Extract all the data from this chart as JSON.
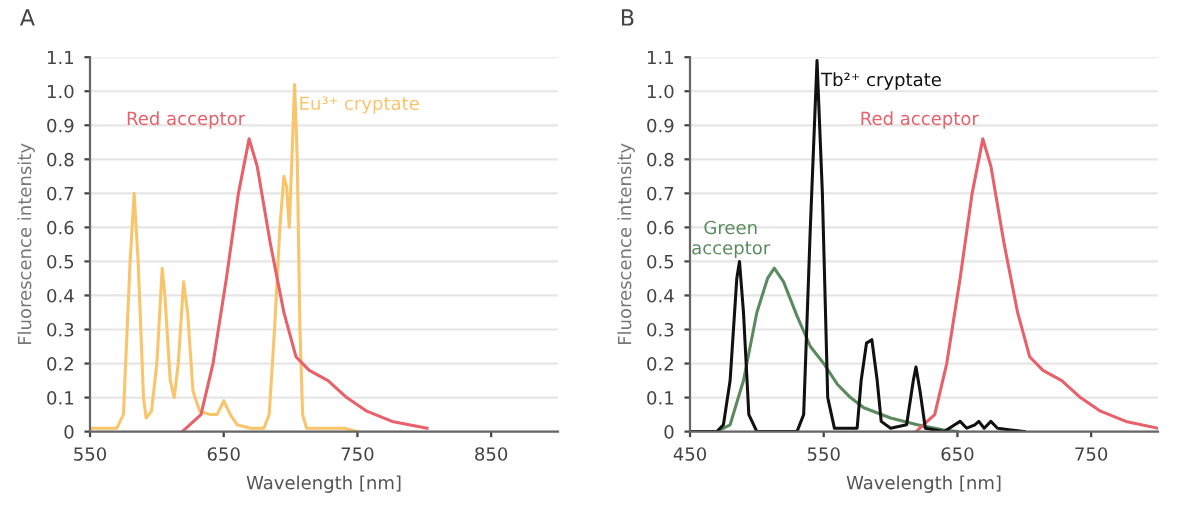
{
  "chart_data": [
    {
      "type": "line",
      "title": "A",
      "xlabel": "Wavelength [nm]",
      "ylabel": "Fluorescence intensity",
      "xlim": [
        550,
        900
      ],
      "xticks": [
        550,
        650,
        750,
        850
      ],
      "ylim": [
        0,
        1.1
      ],
      "yticks": [
        0,
        0.1,
        0.2,
        0.3,
        0.4,
        0.5,
        0.6,
        0.7,
        0.8,
        0.9,
        {
          "value": 1.0,
          "label": "1.0"
        },
        1.1
      ],
      "grid": "y",
      "legend": false,
      "marker": "none",
      "line_style": "solid",
      "series": [
        {
          "name": "Eu³⁺ cryptate",
          "color": "#f9c46a",
          "x": [
            550,
            570,
            575,
            580,
            583,
            586,
            590,
            592,
            596,
            600,
            604,
            606,
            610,
            613,
            616,
            620,
            623,
            627,
            632,
            640,
            645,
            650,
            655,
            660,
            670,
            680,
            684,
            688,
            692,
            695,
            697,
            699,
            701,
            703,
            705,
            707,
            709,
            712,
            730,
            740,
            750
          ],
          "values": [
            0.01,
            0.01,
            0.05,
            0.5,
            0.7,
            0.5,
            0.1,
            0.04,
            0.06,
            0.2,
            0.48,
            0.4,
            0.15,
            0.1,
            0.2,
            0.44,
            0.35,
            0.12,
            0.06,
            0.05,
            0.05,
            0.09,
            0.05,
            0.02,
            0.01,
            0.01,
            0.05,
            0.3,
            0.6,
            0.75,
            0.72,
            0.6,
            0.8,
            1.02,
            0.8,
            0.3,
            0.05,
            0.01,
            0.01,
            0.01,
            0.0
          ]
        },
        {
          "name": "Red acceptor",
          "color": "#e8606a",
          "x": [
            619,
            633,
            642,
            652,
            661,
            669,
            675,
            685,
            695,
            704,
            714,
            728,
            742,
            757,
            776,
            802
          ],
          "values": [
            0,
            0.05,
            0.2,
            0.45,
            0.7,
            0.86,
            0.78,
            0.55,
            0.35,
            0.22,
            0.18,
            0.15,
            0.1,
            0.06,
            0.03,
            0.01
          ]
        }
      ]
    },
    {
      "type": "line",
      "title": "B",
      "xlabel": "Wavelength [nm]",
      "ylabel": "Fluorescence intensity",
      "xlim": [
        450,
        800
      ],
      "xticks": [
        450,
        550,
        650,
        750
      ],
      "ylim": [
        0,
        1.1
      ],
      "yticks": [
        0,
        0.1,
        0.2,
        0.3,
        0.4,
        0.5,
        0.6,
        0.7,
        0.8,
        0.9,
        {
          "value": 1.0,
          "label": "1.0"
        },
        1.1
      ],
      "grid": "y",
      "legend": false,
      "marker": "none",
      "line_style": "solid",
      "series": [
        {
          "name": "Green\nacceptor",
          "color": "#5a8a5e",
          "x": [
            470,
            480,
            490,
            500,
            508,
            513,
            520,
            530,
            540,
            550,
            560,
            570,
            580,
            600,
            620,
            640,
            650
          ],
          "values": [
            0,
            0.02,
            0.15,
            0.35,
            0.45,
            0.48,
            0.44,
            0.34,
            0.25,
            0.2,
            0.14,
            0.1,
            0.07,
            0.04,
            0.02,
            0.005,
            0
          ]
        },
        {
          "name": "Red acceptor",
          "color": "#e8606a",
          "x": [
            619,
            633,
            642,
            652,
            661,
            669,
            675,
            685,
            695,
            704,
            714,
            728,
            742,
            757,
            776,
            800
          ],
          "values": [
            0,
            0.05,
            0.2,
            0.45,
            0.7,
            0.86,
            0.78,
            0.55,
            0.35,
            0.22,
            0.18,
            0.15,
            0.1,
            0.06,
            0.03,
            0.01
          ]
        },
        {
          "name": "Tb²⁺ cryptate",
          "color": "#111111",
          "x": [
            450,
            470,
            475,
            480,
            485,
            487,
            490,
            494,
            500,
            530,
            535,
            540,
            545,
            549,
            553,
            558,
            575,
            578,
            582,
            586,
            590,
            593,
            600,
            612,
            617,
            619,
            622,
            626,
            640,
            648,
            652,
            657,
            663,
            666,
            670,
            675,
            680,
            690,
            700
          ],
          "values": [
            0,
            0,
            0.02,
            0.15,
            0.45,
            0.5,
            0.35,
            0.05,
            0,
            0,
            0.05,
            0.6,
            1.09,
            0.7,
            0.1,
            0.01,
            0.01,
            0.15,
            0.26,
            0.27,
            0.15,
            0.03,
            0.01,
            0.02,
            0.15,
            0.19,
            0.12,
            0.01,
            0,
            0.02,
            0.03,
            0.01,
            0.02,
            0.03,
            0.01,
            0.03,
            0.01,
            0.005,
            0
          ]
        }
      ]
    }
  ]
}
